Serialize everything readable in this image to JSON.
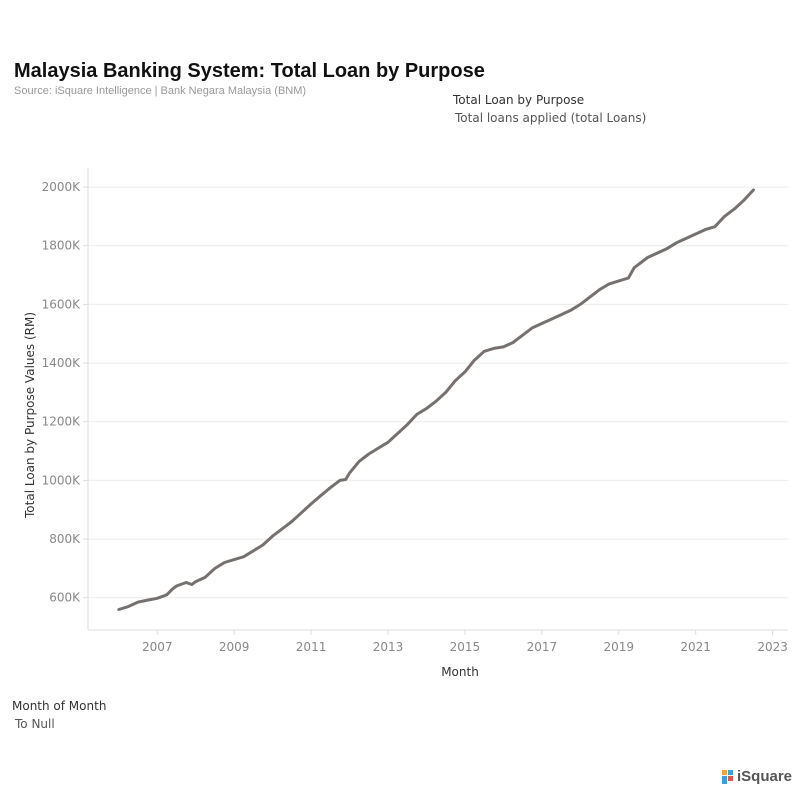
{
  "header": {
    "title": "Malaysia Banking System: Total Loan by Purpose",
    "source": "Source: iSquare Intelligence | Bank Negara Malaysia (BNM)"
  },
  "legend": {
    "title": "Total Loan by Purpose",
    "item": "Total loans applied (total Loans)"
  },
  "filter": {
    "title": "Month of Month",
    "value": "To Null"
  },
  "brand": {
    "name": "iSquare"
  },
  "colors": {
    "line": "#76706f",
    "grid": "#ececec",
    "axis": "#dddddd"
  },
  "chart_data": {
    "type": "line",
    "title": "",
    "xlabel": "Month",
    "ylabel": "Total Loan by Purpose Values (RM)",
    "xlim": [
      2005.2,
      2023.4
    ],
    "ylim": [
      490,
      2065
    ],
    "x_ticks": [
      2007,
      2009,
      2011,
      2013,
      2015,
      2017,
      2019,
      2021,
      2023
    ],
    "x_tick_labels": [
      "2007",
      "2009",
      "2011",
      "2013",
      "2015",
      "2017",
      "2019",
      "2021",
      "2023"
    ],
    "y_ticks": [
      600,
      800,
      1000,
      1200,
      1400,
      1600,
      1800,
      2000
    ],
    "y_tick_labels": [
      "600K",
      "800K",
      "1000K",
      "1200K",
      "1400K",
      "1600K",
      "1800K",
      "2000K"
    ],
    "grid": true,
    "series": [
      {
        "name": "Total loans applied (total Loans)",
        "x": [
          2006.0,
          2006.25,
          2006.5,
          2006.75,
          2007.0,
          2007.25,
          2007.4,
          2007.5,
          2007.75,
          2007.9,
          2008.0,
          2008.25,
          2008.5,
          2008.75,
          2009.0,
          2009.25,
          2009.5,
          2009.75,
          2010.0,
          2010.25,
          2010.5,
          2010.75,
          2011.0,
          2011.25,
          2011.5,
          2011.75,
          2011.9,
          2012.0,
          2012.25,
          2012.5,
          2012.75,
          2013.0,
          2013.25,
          2013.5,
          2013.75,
          2014.0,
          2014.25,
          2014.5,
          2014.75,
          2015.0,
          2015.25,
          2015.5,
          2015.75,
          2016.0,
          2016.25,
          2016.5,
          2016.75,
          2017.0,
          2017.25,
          2017.5,
          2017.75,
          2018.0,
          2018.25,
          2018.5,
          2018.75,
          2019.0,
          2019.25,
          2019.4,
          2019.5,
          2019.75,
          2020.0,
          2020.25,
          2020.5,
          2020.75,
          2021.0,
          2021.25,
          2021.5,
          2021.75,
          2022.0,
          2022.25,
          2022.5
        ],
        "values": [
          560,
          570,
          585,
          592,
          598,
          610,
          630,
          640,
          652,
          645,
          655,
          670,
          700,
          720,
          730,
          740,
          760,
          780,
          810,
          835,
          860,
          890,
          920,
          948,
          975,
          1000,
          1003,
          1025,
          1065,
          1090,
          1110,
          1130,
          1160,
          1190,
          1225,
          1245,
          1270,
          1300,
          1340,
          1370,
          1410,
          1440,
          1450,
          1455,
          1470,
          1495,
          1520,
          1535,
          1550,
          1565,
          1580,
          1600,
          1625,
          1650,
          1670,
          1680,
          1690,
          1725,
          1735,
          1760,
          1775,
          1790,
          1810,
          1825,
          1840,
          1855,
          1865,
          1900,
          1925,
          1955,
          1990
        ]
      }
    ]
  }
}
